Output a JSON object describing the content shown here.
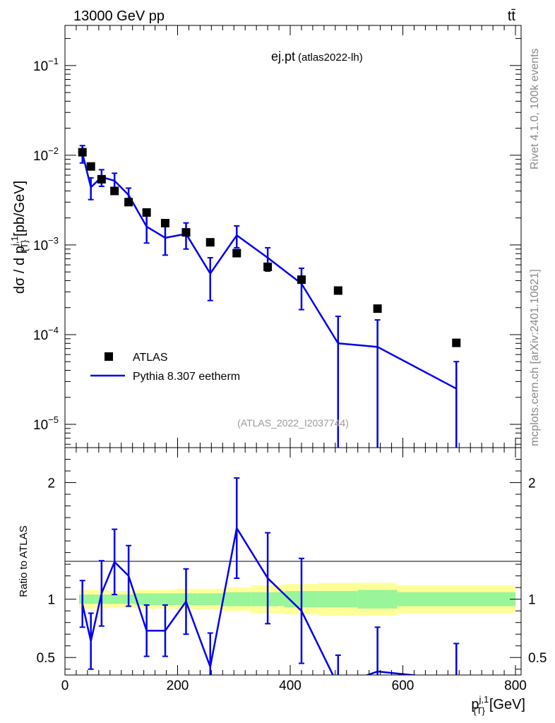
{
  "header": {
    "energy_label": "13000 GeV pp",
    "process_label": "tt̄"
  },
  "main_plot": {
    "title": "ej.pt",
    "title_sub": "(atlas2022-lh)",
    "ylabel": "dσ / d p",
    "ylabel_sup": "j,1",
    "ylabel_sub": "{T}",
    "ylabel_units": "[pb/GeV]",
    "analysis_id": "(ATLAS_2022_I2037744)",
    "y_scale": "log",
    "ylim": [
      5.5e-06,
      0.28
    ],
    "y_ticks": [
      {
        "mant": "10",
        "exp": "−1",
        "value": 0.1
      },
      {
        "mant": "10",
        "exp": "−2",
        "value": 0.01
      },
      {
        "mant": "10",
        "exp": "−3",
        "value": 0.001
      },
      {
        "mant": "10",
        "exp": "−4",
        "value": 0.0001
      },
      {
        "mant": "10",
        "exp": "−5",
        "value": 1e-05
      }
    ]
  },
  "side_labels": {
    "rivet": "Rivet 4.1.0,  100k events",
    "mcplots": "mcplots.cern.ch [arXiv:2401.10621]"
  },
  "legend": {
    "data_label": "ATLAS",
    "mc_label": "Pythia 8.307 eetherm"
  },
  "ratio_plot": {
    "ylabel": "Ratio to ATLAS",
    "ylim": [
      0.35,
      2.3
    ],
    "y_ticks": [
      "0.5",
      "1",
      "2"
    ]
  },
  "x_axis": {
    "label": "p",
    "label_sup": "j,1",
    "label_sub": "{T}",
    "label_units": "[GeV]",
    "range": [
      0,
      810
    ],
    "tick_labels": [
      "0",
      "200",
      "400",
      "600",
      "800"
    ]
  },
  "colors": {
    "mc": "#0000ee",
    "data": "#000000",
    "band_inner": "#99f599",
    "band_outer": "#ffff99",
    "analysis_id": "#999999",
    "side_text": "#888888"
  },
  "chart_data": {
    "type": "line",
    "x_bins": [
      [
        25,
        37
      ],
      [
        37,
        55
      ],
      [
        55,
        75
      ],
      [
        75,
        100
      ],
      [
        100,
        125
      ],
      [
        125,
        160
      ],
      [
        160,
        195
      ],
      [
        195,
        235
      ],
      [
        235,
        280
      ],
      [
        280,
        330
      ],
      [
        330,
        390
      ],
      [
        390,
        450
      ],
      [
        450,
        520
      ],
      [
        520,
        590
      ],
      [
        590,
        800
      ]
    ],
    "x": [
      31,
      46,
      65,
      88,
      113,
      145,
      178,
      215,
      258,
      305,
      360,
      420,
      485,
      555,
      695
    ],
    "series": [
      {
        "name": "ATLAS",
        "style": "markers",
        "values": [
          0.0108,
          0.0075,
          0.0054,
          0.004,
          0.003,
          0.0023,
          0.00175,
          0.00138,
          0.00107,
          0.00081,
          0.00057,
          0.00041,
          0.00031,
          0.000195,
          8.1e-05
        ],
        "band_inner": [
          0.04,
          0.04,
          0.04,
          0.04,
          0.04,
          0.05,
          0.05,
          0.05,
          0.05,
          0.06,
          0.06,
          0.07,
          0.07,
          0.08,
          0.06
        ],
        "band_outer": [
          0.08,
          0.08,
          0.08,
          0.07,
          0.07,
          0.08,
          0.08,
          0.09,
          0.09,
          0.1,
          0.12,
          0.13,
          0.14,
          0.14,
          0.12
        ]
      },
      {
        "name": "Pythia 8.307 eetherm",
        "style": "line",
        "values": [
          0.0105,
          0.0044,
          0.0057,
          0.0052,
          0.0036,
          0.0016,
          0.0012,
          0.00133,
          0.00048,
          0.00128,
          0.00072,
          0.00037,
          8e-05,
          7.3e-05,
          2.5e-05
        ],
        "errors": [
          0.0023,
          0.0012,
          0.0012,
          0.0011,
          0.0007,
          0.00055,
          0.00043,
          0.00043,
          0.00024,
          0.00035,
          0.00021,
          0.00018,
          8e-05,
          7.3e-05,
          2.5e-05
        ]
      }
    ],
    "ratio": {
      "values": [
        0.96,
        0.64,
        1.05,
        1.32,
        1.2,
        0.73,
        0.73,
        0.98,
        0.42,
        1.61,
        1.18,
        0.9,
        0.26,
        0.38,
        0.31
      ],
      "errors": [
        0.2,
        0.24,
        0.28,
        0.28,
        0.26,
        0.22,
        0.22,
        0.28,
        0.29,
        0.43,
        0.39,
        0.45,
        0.26,
        0.38,
        0.31
      ]
    }
  }
}
